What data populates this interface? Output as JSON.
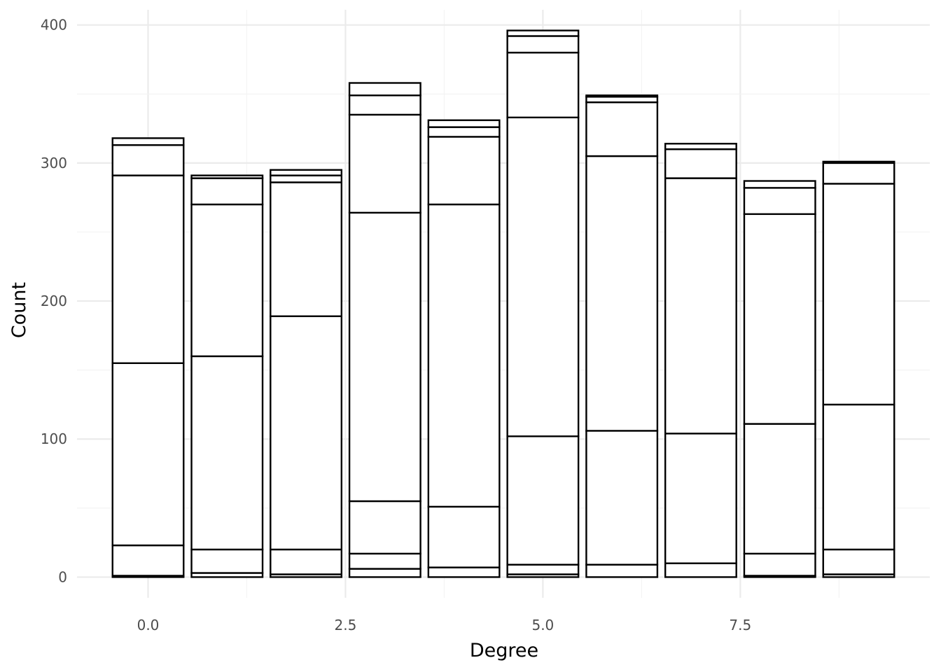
{
  "chart_data": {
    "type": "bar",
    "stacked": true,
    "title": "",
    "xlabel": "Degree",
    "ylabel": "Count",
    "xlim": [
      -0.9,
      9.9
    ],
    "ylim": [
      -15,
      411
    ],
    "x_ticks": [
      0.0,
      2.5,
      5.0,
      7.5
    ],
    "x_tick_labels": [
      "0.0",
      "2.5",
      "5.0",
      "7.5"
    ],
    "y_ticks": [
      0,
      100,
      200,
      300,
      400
    ],
    "y_tick_labels": [
      "0",
      "100",
      "200",
      "300",
      "400"
    ],
    "grid": true,
    "legend": "none",
    "bar_width": 0.9,
    "fill_color": "#ffffff",
    "outline_color": "#000000",
    "bars": [
      {
        "x": 0,
        "boundaries": [
          0,
          1,
          23,
          155,
          291,
          313,
          318
        ]
      },
      {
        "x": 1,
        "boundaries": [
          0,
          3,
          20,
          160,
          270,
          289,
          291
        ]
      },
      {
        "x": 2,
        "boundaries": [
          0,
          2,
          20,
          189,
          286,
          291,
          295
        ]
      },
      {
        "x": 3,
        "boundaries": [
          0,
          6,
          17,
          55,
          264,
          335,
          349,
          358
        ]
      },
      {
        "x": 4,
        "boundaries": [
          0,
          7,
          51,
          270,
          319,
          326,
          331
        ]
      },
      {
        "x": 5,
        "boundaries": [
          0,
          2,
          9,
          102,
          333,
          380,
          392,
          396
        ]
      },
      {
        "x": 6,
        "boundaries": [
          0,
          9,
          106,
          305,
          344,
          348,
          349
        ]
      },
      {
        "x": 7,
        "boundaries": [
          0,
          10,
          104,
          289,
          310,
          314
        ]
      },
      {
        "x": 8,
        "boundaries": [
          0,
          1,
          17,
          111,
          263,
          282,
          287
        ]
      },
      {
        "x": 9,
        "boundaries": [
          0,
          2,
          20,
          125,
          285,
          300,
          301
        ]
      }
    ]
  }
}
